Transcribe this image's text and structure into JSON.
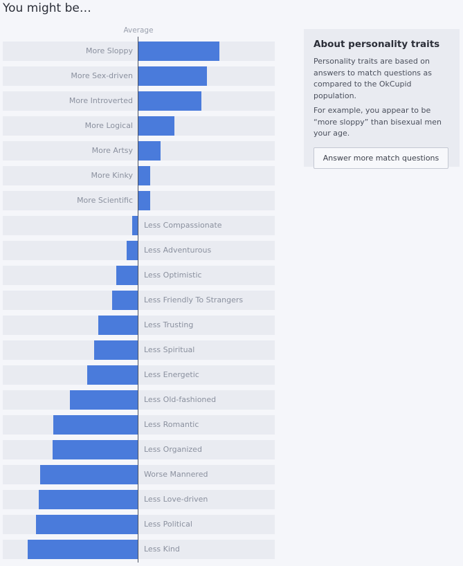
{
  "page": {
    "title": "You might be…",
    "average_label": "Average"
  },
  "about": {
    "title": "About personality traits",
    "paragraph1": "Personality traits are based on answers to match questions as compared to the OkCupid population.",
    "paragraph2": "For example, you appear to be “more sloppy” than bisexual men your age.",
    "button_label": "Answer more match questions"
  },
  "colors": {
    "bar": "#4a7bdb",
    "track": "#e9ebf1"
  },
  "chart_data": {
    "type": "bar",
    "orientation": "horizontal-diverging",
    "baseline_label": "Average",
    "categories": [
      "More Sloppy",
      "More Sex-driven",
      "More Introverted",
      "More Logical",
      "More Artsy",
      "More Kinky",
      "More Scientific",
      "Less Compassionate",
      "Less Adventurous",
      "Less Optimistic",
      "Less Friendly To Strangers",
      "Less Trusting",
      "Less Spiritual",
      "Less Energetic",
      "Less Old-fashioned",
      "Less Romantic",
      "Less Organized",
      "Worse Mannered",
      "Less Love-driven",
      "Less Political",
      "Less Kind"
    ],
    "values": [
      60,
      51,
      47,
      27,
      17,
      9,
      9,
      -4,
      -8,
      -16,
      -19,
      -29,
      -32,
      -37,
      -50,
      -62,
      -63,
      -72,
      -73,
      -75,
      -81
    ],
    "xlim": [
      -100,
      100
    ]
  }
}
